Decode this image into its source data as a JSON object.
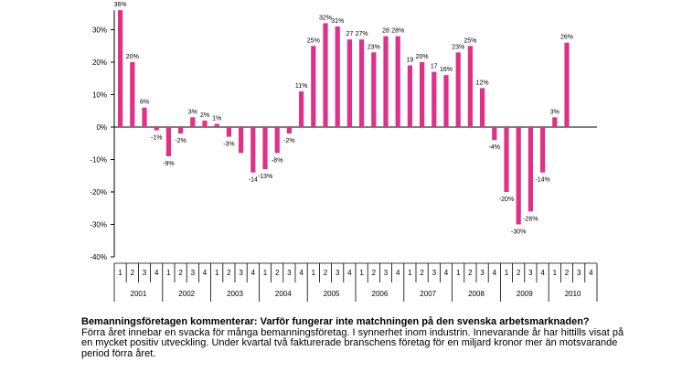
{
  "chart_data": {
    "type": "bar",
    "title": "",
    "xlabel": "",
    "ylabel": "",
    "ylim": [
      -40,
      36
    ],
    "yticks": [
      -40,
      -30,
      -20,
      -10,
      0,
      10,
      20,
      30
    ],
    "ytick_labels": [
      "-40%",
      "-30%",
      "-20%",
      "-10%",
      "0%",
      "10%",
      "20%",
      "30%"
    ],
    "color": "#e0308a",
    "grid": false,
    "years": [
      "2001",
      "2002",
      "2003",
      "2004",
      "2005",
      "2006",
      "2007",
      "2008",
      "2009",
      "2010"
    ],
    "quarters": [
      "1",
      "2",
      "3",
      "4"
    ],
    "values": [
      36,
      20,
      6,
      -1,
      -9,
      -2,
      3,
      2,
      1,
      -3,
      -8,
      -14,
      -13,
      -8,
      -2,
      11,
      25,
      32,
      31,
      27,
      27,
      23,
      28,
      28,
      19,
      20,
      17,
      16,
      23,
      25,
      12,
      -4,
      -20,
      -30,
      -26,
      -14,
      3,
      26,
      null,
      null
    ],
    "labels": [
      "36%",
      "20%",
      "6%",
      "-1%",
      "-9%",
      "-2%",
      "3%",
      "2%",
      "1%",
      "-3%",
      "",
      "-14",
      "-13%",
      "-8%",
      "-2%",
      "11%",
      "25%",
      "32%",
      "31%",
      "27",
      "27%",
      "23%",
      "28",
      "28%",
      "19",
      "20%",
      "17",
      "16%",
      "23%",
      "25%",
      "12%",
      "-4%",
      "-20%",
      "-30%",
      "-26%",
      "-14%",
      "3%",
      "26%",
      "",
      ""
    ]
  },
  "caption": {
    "heading": "Bemanningsföretagen kommenterar: Varför fungerar inte matchningen på den svenska arbetsmarknaden?",
    "body": "Förra året innebar en svacka för många bemanningsföretag. I synnerhet inom industrin. Innevarande år har hittills visat på en mycket positiv utveckling. Under kvartal två fakturerade branschens företag för en miljard kronor mer än motsvarande period förra året."
  }
}
